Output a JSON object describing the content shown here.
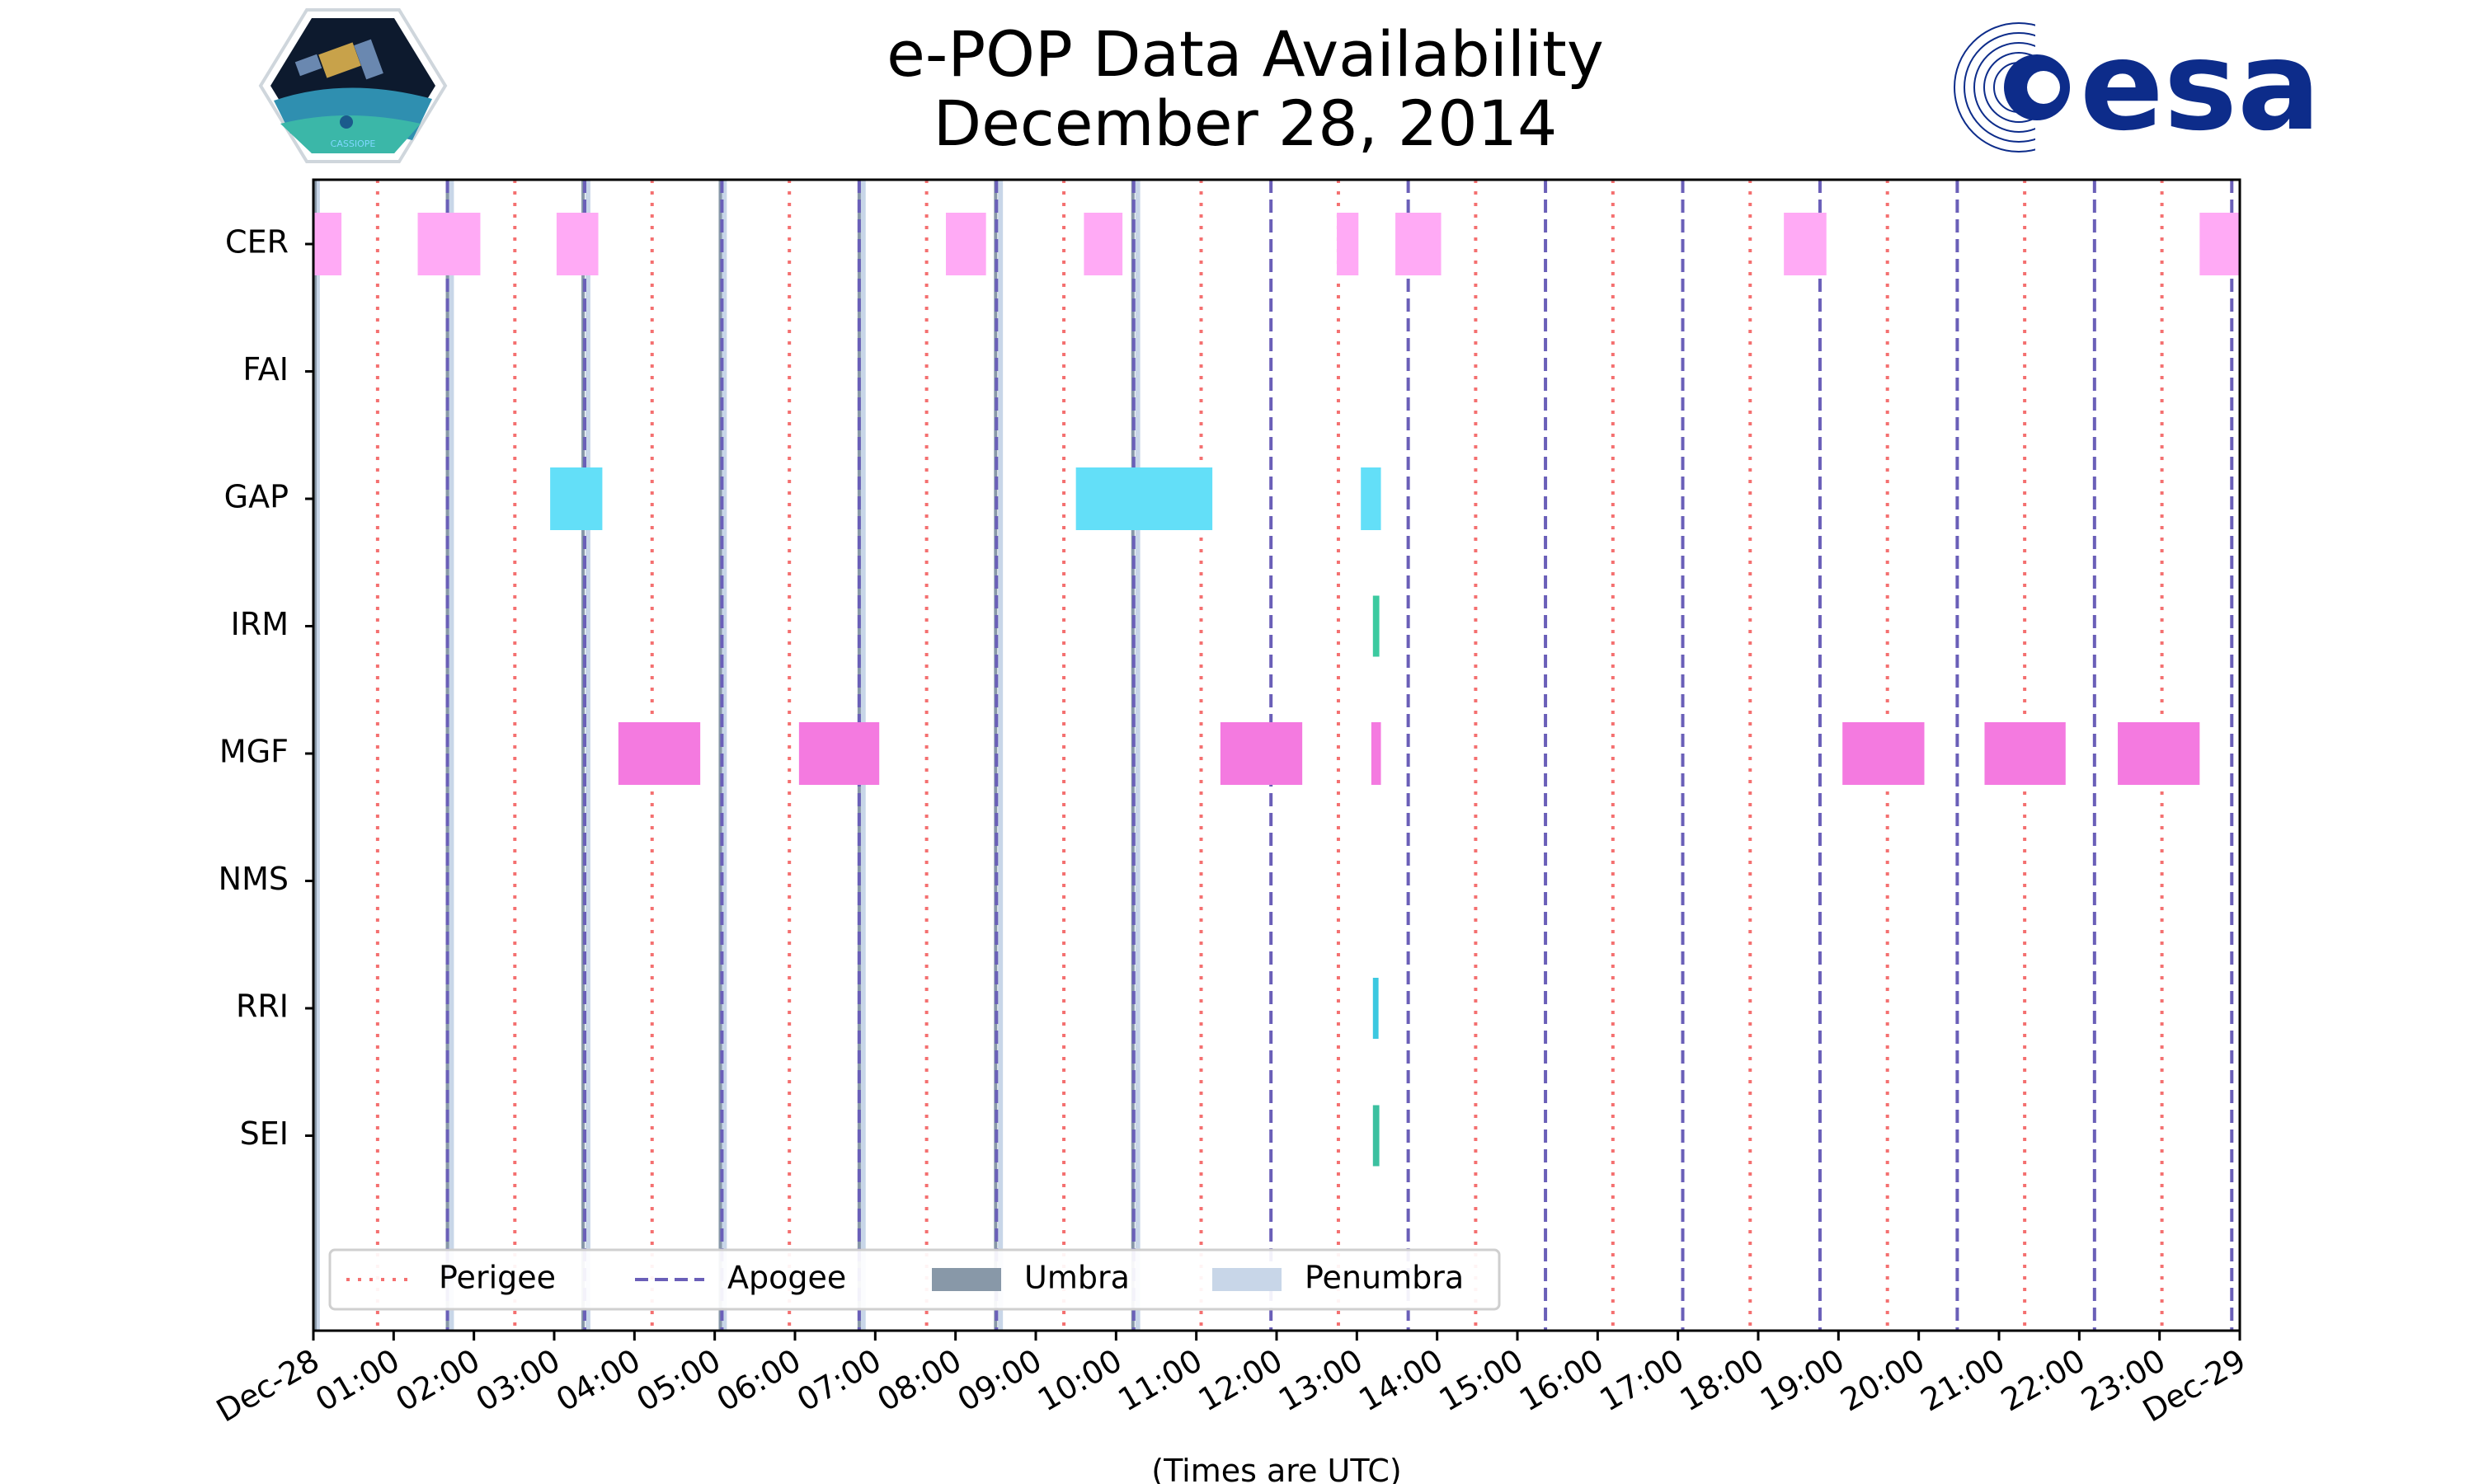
{
  "chart_data": {
    "type": "timeline",
    "title_line1": "e-POP Data Availability",
    "title_line2": "December 28, 2014",
    "xlabel": "(Times are UTC)",
    "xlim_hours": [
      0,
      24
    ],
    "instruments": [
      "CER",
      "FAI",
      "GAP",
      "IRM",
      "MGF",
      "NMS",
      "RRI",
      "SEI"
    ],
    "xticks": [
      {
        "hour": 0,
        "label": "Dec-28"
      },
      {
        "hour": 1,
        "label": "01:00"
      },
      {
        "hour": 2,
        "label": "02:00"
      },
      {
        "hour": 3,
        "label": "03:00"
      },
      {
        "hour": 4,
        "label": "04:00"
      },
      {
        "hour": 5,
        "label": "05:00"
      },
      {
        "hour": 6,
        "label": "06:00"
      },
      {
        "hour": 7,
        "label": "07:00"
      },
      {
        "hour": 8,
        "label": "08:00"
      },
      {
        "hour": 9,
        "label": "09:00"
      },
      {
        "hour": 10,
        "label": "10:00"
      },
      {
        "hour": 11,
        "label": "11:00"
      },
      {
        "hour": 12,
        "label": "12:00"
      },
      {
        "hour": 13,
        "label": "13:00"
      },
      {
        "hour": 14,
        "label": "14:00"
      },
      {
        "hour": 15,
        "label": "15:00"
      },
      {
        "hour": 16,
        "label": "16:00"
      },
      {
        "hour": 17,
        "label": "17:00"
      },
      {
        "hour": 18,
        "label": "18:00"
      },
      {
        "hour": 19,
        "label": "19:00"
      },
      {
        "hour": 20,
        "label": "20:00"
      },
      {
        "hour": 21,
        "label": "21:00"
      },
      {
        "hour": 22,
        "label": "22:00"
      },
      {
        "hour": 23,
        "label": "23:00"
      },
      {
        "hour": 24,
        "label": "Dec-29"
      }
    ],
    "perigee_hours": [
      0.8,
      2.51,
      4.22,
      5.93,
      7.64,
      9.35,
      11.06,
      12.77,
      14.48,
      16.19,
      17.9,
      19.61,
      21.32,
      23.03
    ],
    "apogee_hours": [
      1.67,
      3.38,
      5.09,
      6.8,
      8.51,
      10.22,
      11.93,
      13.64,
      15.35,
      17.06,
      18.77,
      20.48,
      22.19,
      23.9
    ],
    "umbra_hours": [
      0.02,
      1.67,
      3.36,
      5.07,
      6.8,
      8.5,
      10.21
    ],
    "penumbra_hours": [
      0.05,
      1.72,
      3.42,
      5.12,
      6.85,
      8.56,
      10.27
    ],
    "segments": [
      {
        "instrument": "CER",
        "start": 0.0,
        "end": 0.35,
        "color": "#ffaaf5"
      },
      {
        "instrument": "CER",
        "start": 1.3,
        "end": 2.08,
        "color": "#ffaaf5"
      },
      {
        "instrument": "CER",
        "start": 3.03,
        "end": 3.55,
        "color": "#ffaaf5"
      },
      {
        "instrument": "CER",
        "start": 7.88,
        "end": 8.38,
        "color": "#ffaaf5"
      },
      {
        "instrument": "CER",
        "start": 9.6,
        "end": 10.08,
        "color": "#ffaaf5"
      },
      {
        "instrument": "CER",
        "start": 12.75,
        "end": 13.02,
        "color": "#ffaaf5"
      },
      {
        "instrument": "CER",
        "start": 13.48,
        "end": 14.05,
        "color": "#ffaaf5"
      },
      {
        "instrument": "CER",
        "start": 18.32,
        "end": 18.85,
        "color": "#ffaaf5"
      },
      {
        "instrument": "CER",
        "start": 23.5,
        "end": 24.0,
        "color": "#ffaaf5"
      },
      {
        "instrument": "GAP",
        "start": 2.95,
        "end": 3.6,
        "color": "#63dff8"
      },
      {
        "instrument": "GAP",
        "start": 9.5,
        "end": 11.2,
        "color": "#63dff8"
      },
      {
        "instrument": "GAP",
        "start": 13.05,
        "end": 13.3,
        "color": "#63dff8"
      },
      {
        "instrument": "IRM",
        "start": 13.2,
        "end": 13.28,
        "color": "#3ccaa0"
      },
      {
        "instrument": "MGF",
        "start": 3.8,
        "end": 4.82,
        "color": "#f47ae0"
      },
      {
        "instrument": "MGF",
        "start": 6.05,
        "end": 7.05,
        "color": "#f47ae0"
      },
      {
        "instrument": "MGF",
        "start": 11.3,
        "end": 12.32,
        "color": "#f47ae0"
      },
      {
        "instrument": "MGF",
        "start": 13.18,
        "end": 13.3,
        "color": "#f47ae0"
      },
      {
        "instrument": "MGF",
        "start": 19.05,
        "end": 20.07,
        "color": "#f47ae0"
      },
      {
        "instrument": "MGF",
        "start": 20.82,
        "end": 21.83,
        "color": "#f47ae0"
      },
      {
        "instrument": "MGF",
        "start": 22.48,
        "end": 23.5,
        "color": "#f47ae0"
      },
      {
        "instrument": "RRI",
        "start": 13.2,
        "end": 13.27,
        "color": "#3cc8e0"
      },
      {
        "instrument": "SEI",
        "start": 13.2,
        "end": 13.28,
        "color": "#3cc0a0"
      }
    ],
    "legend": {
      "placement": "lower-left",
      "entries": [
        {
          "label": "Perigee",
          "style": "dotted",
          "color": "#f47070"
        },
        {
          "label": "Apogee",
          "style": "dashed",
          "color": "#6a5fb8"
        },
        {
          "label": "Umbra",
          "style": "patch",
          "color": "#8898a8"
        },
        {
          "label": "Penumbra",
          "style": "patch",
          "color": "#c8d6e8"
        }
      ]
    }
  },
  "logos": {
    "left_text": "CASSIOPE",
    "right_text": "esa",
    "right_color": "#0d2c8a"
  }
}
